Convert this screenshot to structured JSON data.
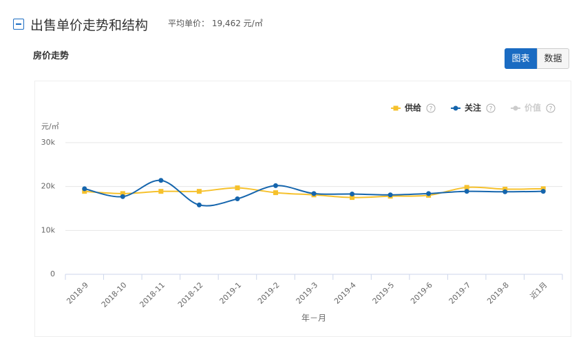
{
  "header": {
    "title": "出售单价走势和结构",
    "avg_label": "平均单价：",
    "avg_value": "19,462 元/㎡"
  },
  "section_title": "房价走势",
  "tabs": [
    "图表",
    "数据"
  ],
  "chart_data": {
    "type": "line",
    "y_label": "元/㎡",
    "x_label": "年－月",
    "categories": [
      "2018-9",
      "2018-10",
      "2018-11",
      "2018-12",
      "2019-1",
      "2019-2",
      "2019-3",
      "2019-4",
      "2019-5",
      "2019-6",
      "2019-7",
      "2019-8",
      "近1月"
    ],
    "series": [
      {
        "name": "供给",
        "color": "#f6c12c",
        "marker": "square",
        "values": [
          18900,
          18400,
          18900,
          18900,
          19700,
          18600,
          18100,
          17500,
          17800,
          18000,
          19800,
          19400,
          19500
        ]
      },
      {
        "name": "关注",
        "color": "#1565ad",
        "marker": "circle",
        "values": [
          19500,
          17700,
          21400,
          15800,
          17200,
          20200,
          18400,
          18300,
          18100,
          18400,
          18900,
          18800,
          18900
        ]
      },
      {
        "name": "价值",
        "color": "#cccccc",
        "marker": "circle",
        "hidden": true,
        "values": [
          null,
          null,
          null,
          null,
          null,
          null,
          null,
          null,
          null,
          null,
          null,
          null,
          null
        ]
      }
    ],
    "ylim": [
      0,
      30000
    ],
    "yticks": [
      0,
      {
        "value": 10000,
        "label": "10k"
      },
      {
        "value": 20000,
        "label": "20k"
      },
      {
        "value": 30000,
        "label": "30k"
      }
    ],
    "grid": true,
    "legend": "top-right"
  }
}
